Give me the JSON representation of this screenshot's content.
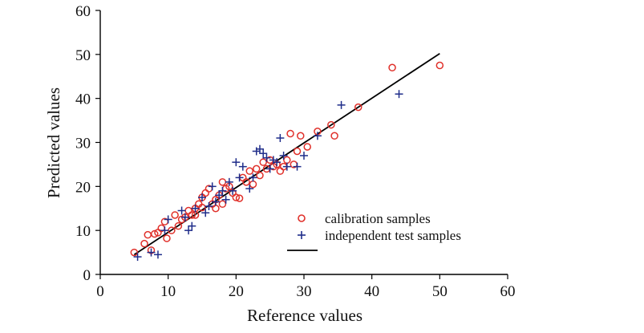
{
  "chart_data": {
    "type": "scatter",
    "xlabel": "Reference values",
    "ylabel": "Predicted values",
    "xlim": [
      0,
      60
    ],
    "ylim": [
      0,
      60
    ],
    "xticks": [
      0,
      10,
      20,
      30,
      40,
      50,
      60
    ],
    "yticks": [
      0,
      10,
      20,
      30,
      40,
      50,
      60
    ],
    "grid": false,
    "legend_position": "lower-right",
    "series": [
      {
        "name": "calibration samples",
        "marker": "open-circle",
        "color": "#e0302a",
        "points": [
          [
            5,
            5
          ],
          [
            6.5,
            7
          ],
          [
            7,
            9
          ],
          [
            7.5,
            5.5
          ],
          [
            8,
            9.2
          ],
          [
            8.5,
            9.5
          ],
          [
            9,
            10.5
          ],
          [
            9.5,
            12
          ],
          [
            9.8,
            8.2
          ],
          [
            10.5,
            10
          ],
          [
            11,
            13.5
          ],
          [
            11.5,
            11
          ],
          [
            12,
            12.5
          ],
          [
            12.5,
            13
          ],
          [
            13,
            14.5
          ],
          [
            13.5,
            13.5
          ],
          [
            14,
            15
          ],
          [
            14.5,
            16
          ],
          [
            15,
            17.5
          ],
          [
            15.5,
            18.5
          ],
          [
            16,
            19.5
          ],
          [
            16.5,
            16
          ],
          [
            17,
            17
          ],
          [
            17.5,
            18
          ],
          [
            18,
            21
          ],
          [
            18.5,
            19.5
          ],
          [
            19,
            20
          ],
          [
            19.5,
            18.5
          ],
          [
            20,
            17.5
          ],
          [
            20.5,
            17.3
          ],
          [
            21,
            22
          ],
          [
            21.5,
            21
          ],
          [
            22,
            23.5
          ],
          [
            22.5,
            20.5
          ],
          [
            23,
            24
          ],
          [
            23.5,
            22.5
          ],
          [
            24,
            25.5
          ],
          [
            24.5,
            24
          ],
          [
            25,
            26
          ],
          [
            25.5,
            24.5
          ],
          [
            26,
            25
          ],
          [
            26.5,
            23.5
          ],
          [
            27,
            24.5
          ],
          [
            27.5,
            26
          ],
          [
            28,
            32
          ],
          [
            28.5,
            25
          ],
          [
            29,
            28
          ],
          [
            29.5,
            31.5
          ],
          [
            30.5,
            29
          ],
          [
            32,
            32.5
          ],
          [
            34,
            34
          ],
          [
            34.5,
            31.5
          ],
          [
            38,
            38
          ],
          [
            43,
            47
          ],
          [
            50,
            47.5
          ],
          [
            15,
            15.2
          ],
          [
            14,
            13.5
          ],
          [
            17,
            15
          ],
          [
            18,
            16
          ]
        ]
      },
      {
        "name": "independent test samples",
        "marker": "plus",
        "color": "#1f2d8a",
        "points": [
          [
            5.5,
            4
          ],
          [
            7.5,
            5
          ],
          [
            8.5,
            4.5
          ],
          [
            9.5,
            10
          ],
          [
            10,
            12.5
          ],
          [
            12,
            14.5
          ],
          [
            12.5,
            13
          ],
          [
            13,
            10
          ],
          [
            13.5,
            11
          ],
          [
            14,
            15
          ],
          [
            15,
            17.5
          ],
          [
            15.5,
            14
          ],
          [
            16,
            15.5
          ],
          [
            16.5,
            20
          ],
          [
            17,
            16.5
          ],
          [
            17.5,
            18
          ],
          [
            18,
            19
          ],
          [
            18.5,
            17
          ],
          [
            19,
            21
          ],
          [
            19.5,
            19
          ],
          [
            20,
            25.5
          ],
          [
            20.5,
            22
          ],
          [
            21,
            24.5
          ],
          [
            22,
            19.5
          ],
          [
            22.5,
            22
          ],
          [
            23,
            28
          ],
          [
            23.5,
            28.5
          ],
          [
            24,
            27.5
          ],
          [
            24.5,
            26.5
          ],
          [
            25,
            24
          ],
          [
            25.5,
            26
          ],
          [
            26,
            25.5
          ],
          [
            26.5,
            31
          ],
          [
            27,
            27
          ],
          [
            27.5,
            24.5
          ],
          [
            29,
            24.5
          ],
          [
            30,
            27
          ],
          [
            32,
            31.5
          ],
          [
            35.5,
            38.5
          ],
          [
            44,
            41
          ]
        ]
      },
      {
        "name": "",
        "marker": "line",
        "color": "#000000",
        "line": [
          [
            5,
            4.5
          ],
          [
            50,
            50.2
          ]
        ]
      }
    ]
  }
}
